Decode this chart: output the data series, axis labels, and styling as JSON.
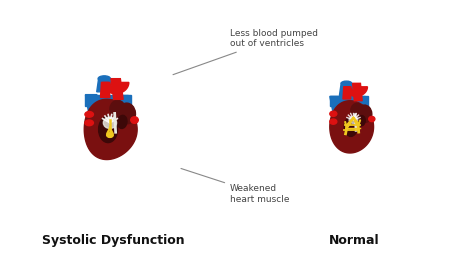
{
  "background_color": "#ffffff",
  "title_left": "Systolic Dysfunction",
  "title_right": "Normal",
  "title_fontsize": 9,
  "annotation1": "Less blood pumped\nout of ventricles",
  "annotation2": "Weakened\nheart muscle",
  "annotation_fontsize": 6.5,
  "colors": {
    "red_bright": "#dd1111",
    "red_dark": "#7a1010",
    "red_medium": "#aa1515",
    "red_deep": "#8b0000",
    "blue_main": "#1a6fbb",
    "blue_light": "#2288cc",
    "dark_brown": "#5c0e0e",
    "inner_dark": "#3d0808",
    "white_ish": "#e8e8e0",
    "silver": "#c8c0b8",
    "yellow": "#f0c820",
    "line_color": "#666666",
    "gray_text": "#444444"
  }
}
